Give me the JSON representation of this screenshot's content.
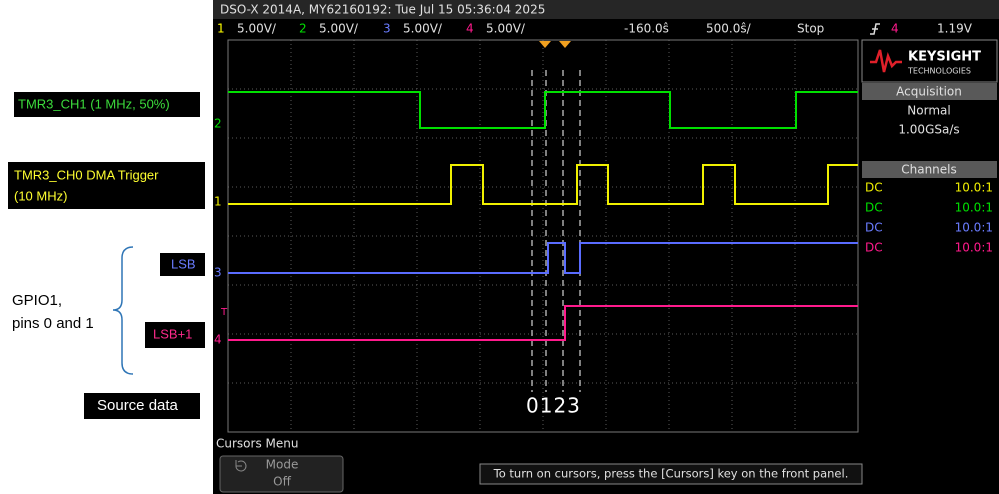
{
  "header": {
    "title": "DSO-X 2014A, MY62160192: Tue Jul 15 05:36:04 2025"
  },
  "status_bar": {
    "channels": [
      {
        "number": "1",
        "scale": "5.00V/"
      },
      {
        "number": "2",
        "scale": "5.00V/"
      },
      {
        "number": "3",
        "scale": "5.00V/"
      },
      {
        "number": "4",
        "scale": "5.00V/"
      }
    ],
    "time_offset": "-160.0ŝ",
    "time_scale": "500.0ŝ/",
    "run_state": "Stop",
    "trigger_channel": "4",
    "trigger_level": "1.19V"
  },
  "screen": {
    "ground_markers": [
      "2",
      "1",
      "3",
      "4"
    ],
    "trigger_marker": "T",
    "cursor_numbers": "0123"
  },
  "side_panel": {
    "brand": "KEYSIGHT",
    "brand_sub": "TECHNOLOGIES",
    "acquisition": {
      "title": "Acquisition",
      "mode": "Normal",
      "rate": "1.00GSa/s"
    },
    "channels": {
      "title": "Channels",
      "rows": [
        [
          "DC",
          "10.0:1"
        ],
        [
          "DC",
          "10.0:1"
        ],
        [
          "DC",
          "10.0:1"
        ],
        [
          "DC",
          "10.0:1"
        ]
      ]
    }
  },
  "bottom": {
    "menu_title": "Cursors Menu",
    "softkey": {
      "label": "Mode",
      "value": "Off"
    },
    "message": "To turn on cursors, press the [Cursors] key on the front panel."
  },
  "annotations": {
    "ch1": "TMR3_CH1 (1 MHz, 50%)",
    "ch0": [
      "TMR3_CH0 DMA Trigger",
      "(10 MHz)"
    ],
    "lsb": "LSB",
    "lsb1": "LSB+1",
    "gpio": [
      "GPIO1,",
      "pins 0 and 1"
    ],
    "source": "Source data"
  }
}
